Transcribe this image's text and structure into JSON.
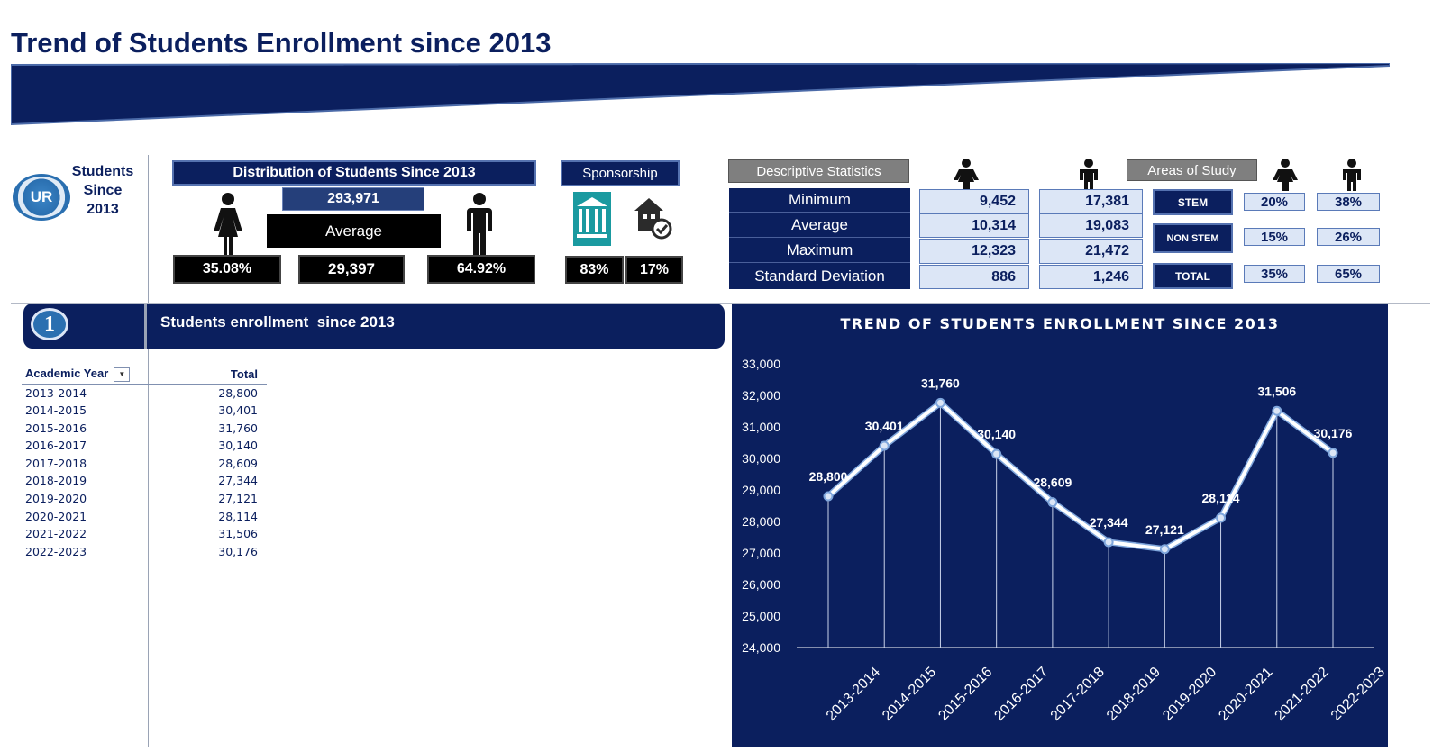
{
  "page": {
    "title": "Trend of Students Enrollment since 2013"
  },
  "logo": {
    "text": "UR"
  },
  "students_since": {
    "line1": "Students",
    "line2": "Since",
    "line3": "2013"
  },
  "distribution": {
    "title": "Distribution of Students Since 2013",
    "total": "293,971",
    "average_label": "Average",
    "female_pct": "35.08%",
    "average_value": "29,397",
    "male_pct": "64.92%"
  },
  "sponsorship": {
    "title": "Sponsorship",
    "government_pct": "83%",
    "private_pct": "17%"
  },
  "descriptive_stats": {
    "title": "Descriptive Statistics",
    "rows": [
      {
        "label": "Minimum",
        "female": "9,452",
        "male": "17,381"
      },
      {
        "label": "Average",
        "female": "10,314",
        "male": "19,083"
      },
      {
        "label": "Maximum",
        "female": "12,323",
        "male": "21,472"
      },
      {
        "label": "Standard Deviation",
        "female": "886",
        "male": "1,246"
      }
    ]
  },
  "areas_of_study": {
    "title": "Areas of Study",
    "rows": [
      {
        "label": "STEM",
        "female": "20%",
        "male": "38%"
      },
      {
        "label": "NON STEM",
        "female": "15%",
        "male": "26%"
      },
      {
        "label": "TOTAL",
        "female": "35%",
        "male": "65%"
      }
    ]
  },
  "section1": {
    "number": "1",
    "title": "Students enrollment  since 2013"
  },
  "enrollment_table": {
    "col_year": "Academic Year",
    "col_total": "Total",
    "rows": [
      {
        "year": "2013-2014",
        "total": "28,800"
      },
      {
        "year": "2014-2015",
        "total": "30,401"
      },
      {
        "year": "2015-2016",
        "total": "31,760"
      },
      {
        "year": "2016-2017",
        "total": "30,140"
      },
      {
        "year": "2017-2018",
        "total": "28,609"
      },
      {
        "year": "2018-2019",
        "total": "27,344"
      },
      {
        "year": "2019-2020",
        "total": "27,121"
      },
      {
        "year": "2020-2021",
        "total": "28,114"
      },
      {
        "year": "2021-2022",
        "total": "31,506"
      },
      {
        "year": "2022-2023",
        "total": "30,176"
      }
    ]
  },
  "colors": {
    "navy": "#0b1f5e",
    "accent_blue": "#2a6fb0",
    "teal": "#1a9aa0",
    "line": "#ffffff"
  },
  "chart_data": {
    "type": "line",
    "title": "TREND OF STUDENTS ENROLLMENT SINCE 2013",
    "categories": [
      "2013-2014",
      "2014-2015",
      "2015-2016",
      "2016-2017",
      "2017-2018",
      "2018-2019",
      "2019-2020",
      "2020-2021",
      "2021-2022",
      "2022-2023"
    ],
    "values": [
      28800,
      30401,
      31760,
      30140,
      28609,
      27344,
      27121,
      28114,
      31506,
      30176
    ],
    "data_labels": [
      "28,800",
      "30,401",
      "31,760",
      "30,140",
      "28,609",
      "27,344",
      "27,121",
      "28,114",
      "31,506",
      "30,176"
    ],
    "yticks": [
      "24,000",
      "25,000",
      "26,000",
      "27,000",
      "28,000",
      "29,000",
      "30,000",
      "31,000",
      "32,000",
      "33,000"
    ],
    "ylim": [
      24000,
      33000
    ],
    "grid": "vertical drop lines",
    "legend": "none"
  }
}
